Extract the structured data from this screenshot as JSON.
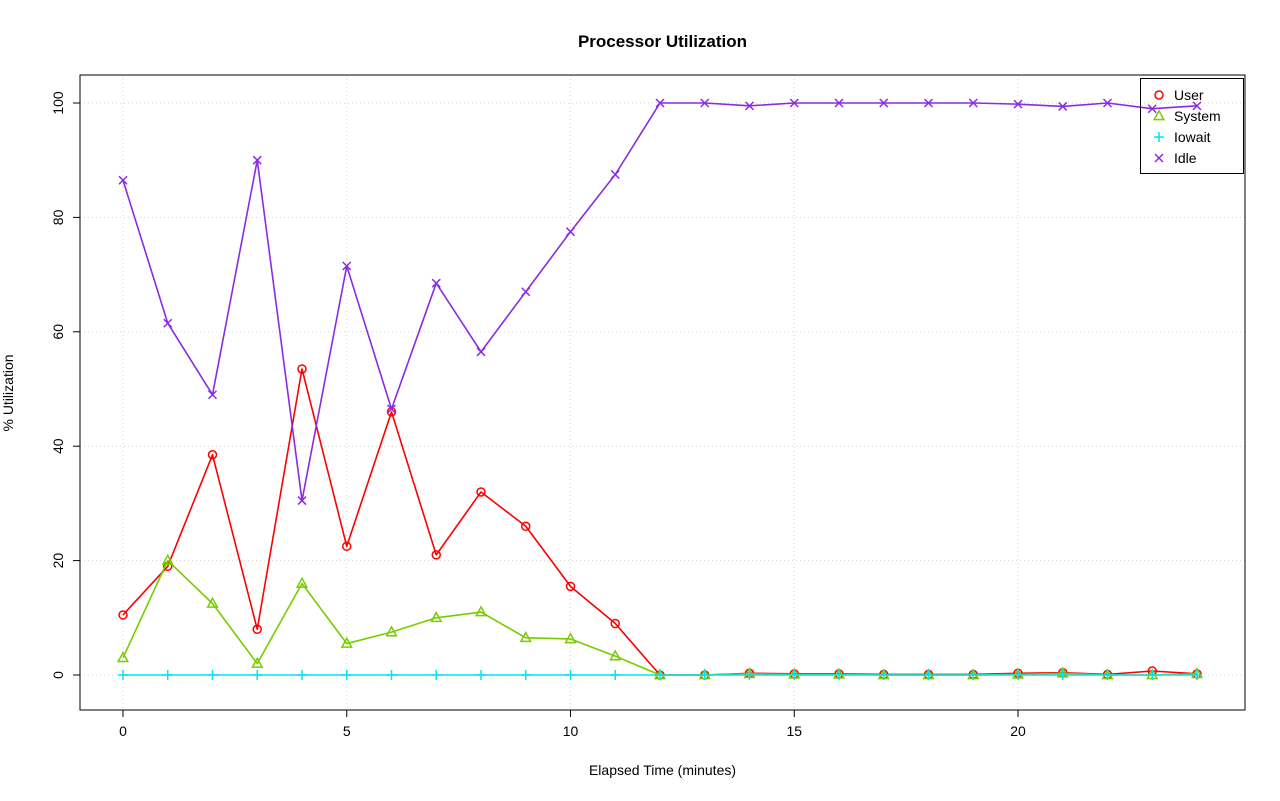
{
  "title": "Processor Utilization",
  "xlabel": "Elapsed Time (minutes)",
  "ylabel": "% Utilization",
  "colors": {
    "user": "#ff0000",
    "system": "#77cc00",
    "iowait": "#00e5ee",
    "idle": "#8a2be2",
    "grid": "#d4d4d4",
    "axis": "#000000"
  },
  "chart_data": {
    "type": "line",
    "title": "Processor Utilization",
    "xlabel": "Elapsed Time (minutes)",
    "ylabel": "% Utilization",
    "x": [
      0,
      1,
      2,
      3,
      4,
      5,
      6,
      7,
      8,
      9,
      10,
      11,
      12,
      13,
      14,
      15,
      16,
      17,
      18,
      19,
      20,
      21,
      22,
      23,
      24
    ],
    "x_ticks": [
      0,
      5,
      10,
      15,
      20
    ],
    "y_ticks": [
      0,
      20,
      40,
      60,
      80,
      100
    ],
    "xlim": [
      0,
      24
    ],
    "ylim": [
      0,
      100
    ],
    "grid": true,
    "grid_style": "dotted",
    "legend_position": "top-right",
    "series": [
      {
        "name": "User",
        "color": "#ff0000",
        "marker": "circle",
        "values": [
          10.5,
          19,
          38.5,
          8,
          53.5,
          22.5,
          46,
          21,
          32,
          26,
          15.5,
          9,
          0,
          0,
          0.3,
          0.2,
          0.2,
          0.1,
          0.1,
          0.1,
          0.3,
          0.4,
          0.1,
          0.7,
          0.2
        ]
      },
      {
        "name": "System",
        "color": "#77cc00",
        "marker": "triangle",
        "values": [
          3,
          20,
          12.5,
          2,
          16,
          5.5,
          7.5,
          10,
          11,
          6.5,
          6.3,
          3.3,
          0,
          0,
          0.2,
          0.1,
          0.1,
          0,
          0,
          0,
          0.1,
          0.3,
          0,
          0,
          0.2
        ]
      },
      {
        "name": "Iowait",
        "color": "#00e5ee",
        "marker": "plus",
        "values": [
          0,
          0,
          0,
          0,
          0,
          0,
          0,
          0,
          0,
          0,
          0,
          0,
          0,
          0,
          0,
          0,
          0,
          0,
          0,
          0,
          0,
          0,
          0,
          0,
          0
        ]
      },
      {
        "name": "Idle",
        "color": "#8a2be2",
        "marker": "x",
        "values": [
          86.5,
          61.5,
          49,
          90,
          30.5,
          71.5,
          46.5,
          68.5,
          56.5,
          67,
          77.5,
          87.5,
          100,
          100,
          99.5,
          100,
          100,
          100,
          100,
          100,
          99.8,
          99.4,
          100,
          99,
          99.5
        ]
      }
    ]
  }
}
